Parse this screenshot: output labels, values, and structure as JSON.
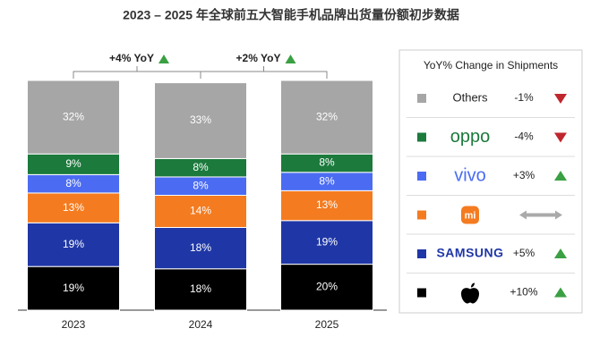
{
  "chart_data": {
    "type": "stacked_bar",
    "title": "2023 – 2025 年全球前五大智能手机品牌出货量份额初步数据",
    "categories": [
      "2023",
      "2024",
      "2025"
    ],
    "ylim": [
      0,
      100
    ],
    "legend_title": "YoY% Change in Shipments",
    "annotations": [
      {
        "value": 4,
        "label": "+4% YoY"
      },
      {
        "value": 2,
        "label": "+2% YoY"
      }
    ],
    "series": [
      {
        "color": "#000000",
        "values": [
          19,
          18,
          20
        ],
        "value_labels": [
          "19%",
          "18%",
          "20%"
        ],
        "change": {
          "value": 10,
          "label": "+10%"
        }
      },
      {
        "name": "SAMSUNG",
        "color": "#1f37a6",
        "values": [
          19,
          18,
          19
        ],
        "value_labels": [
          "19%",
          "18%",
          "19%"
        ],
        "change": {
          "value": 5,
          "label": "+5%"
        }
      },
      {
        "name": "mi",
        "color": "#f47b20",
        "values": [
          13,
          14,
          13
        ],
        "value_labels": [
          "13%",
          "14%",
          "13%"
        ],
        "change": null
      },
      {
        "name": "vivo",
        "color": "#4b6cf2",
        "values": [
          8,
          8,
          8
        ],
        "value_labels": [
          "8%",
          "8%",
          "8%"
        ],
        "change": {
          "value": 3,
          "label": "+3%"
        }
      },
      {
        "name": "oppo",
        "color": "#1b7a3c",
        "values": [
          9,
          8,
          8
        ],
        "value_labels": [
          "9%",
          "8%",
          "8%"
        ],
        "change": {
          "value": -4,
          "label": "-4%"
        }
      },
      {
        "name": "Others",
        "color": "#a6a6a6",
        "values": [
          32,
          33,
          32
        ],
        "value_labels": [
          "32%",
          "33%",
          "32%"
        ],
        "change": {
          "value": -1,
          "label": "-1%"
        }
      }
    ]
  }
}
